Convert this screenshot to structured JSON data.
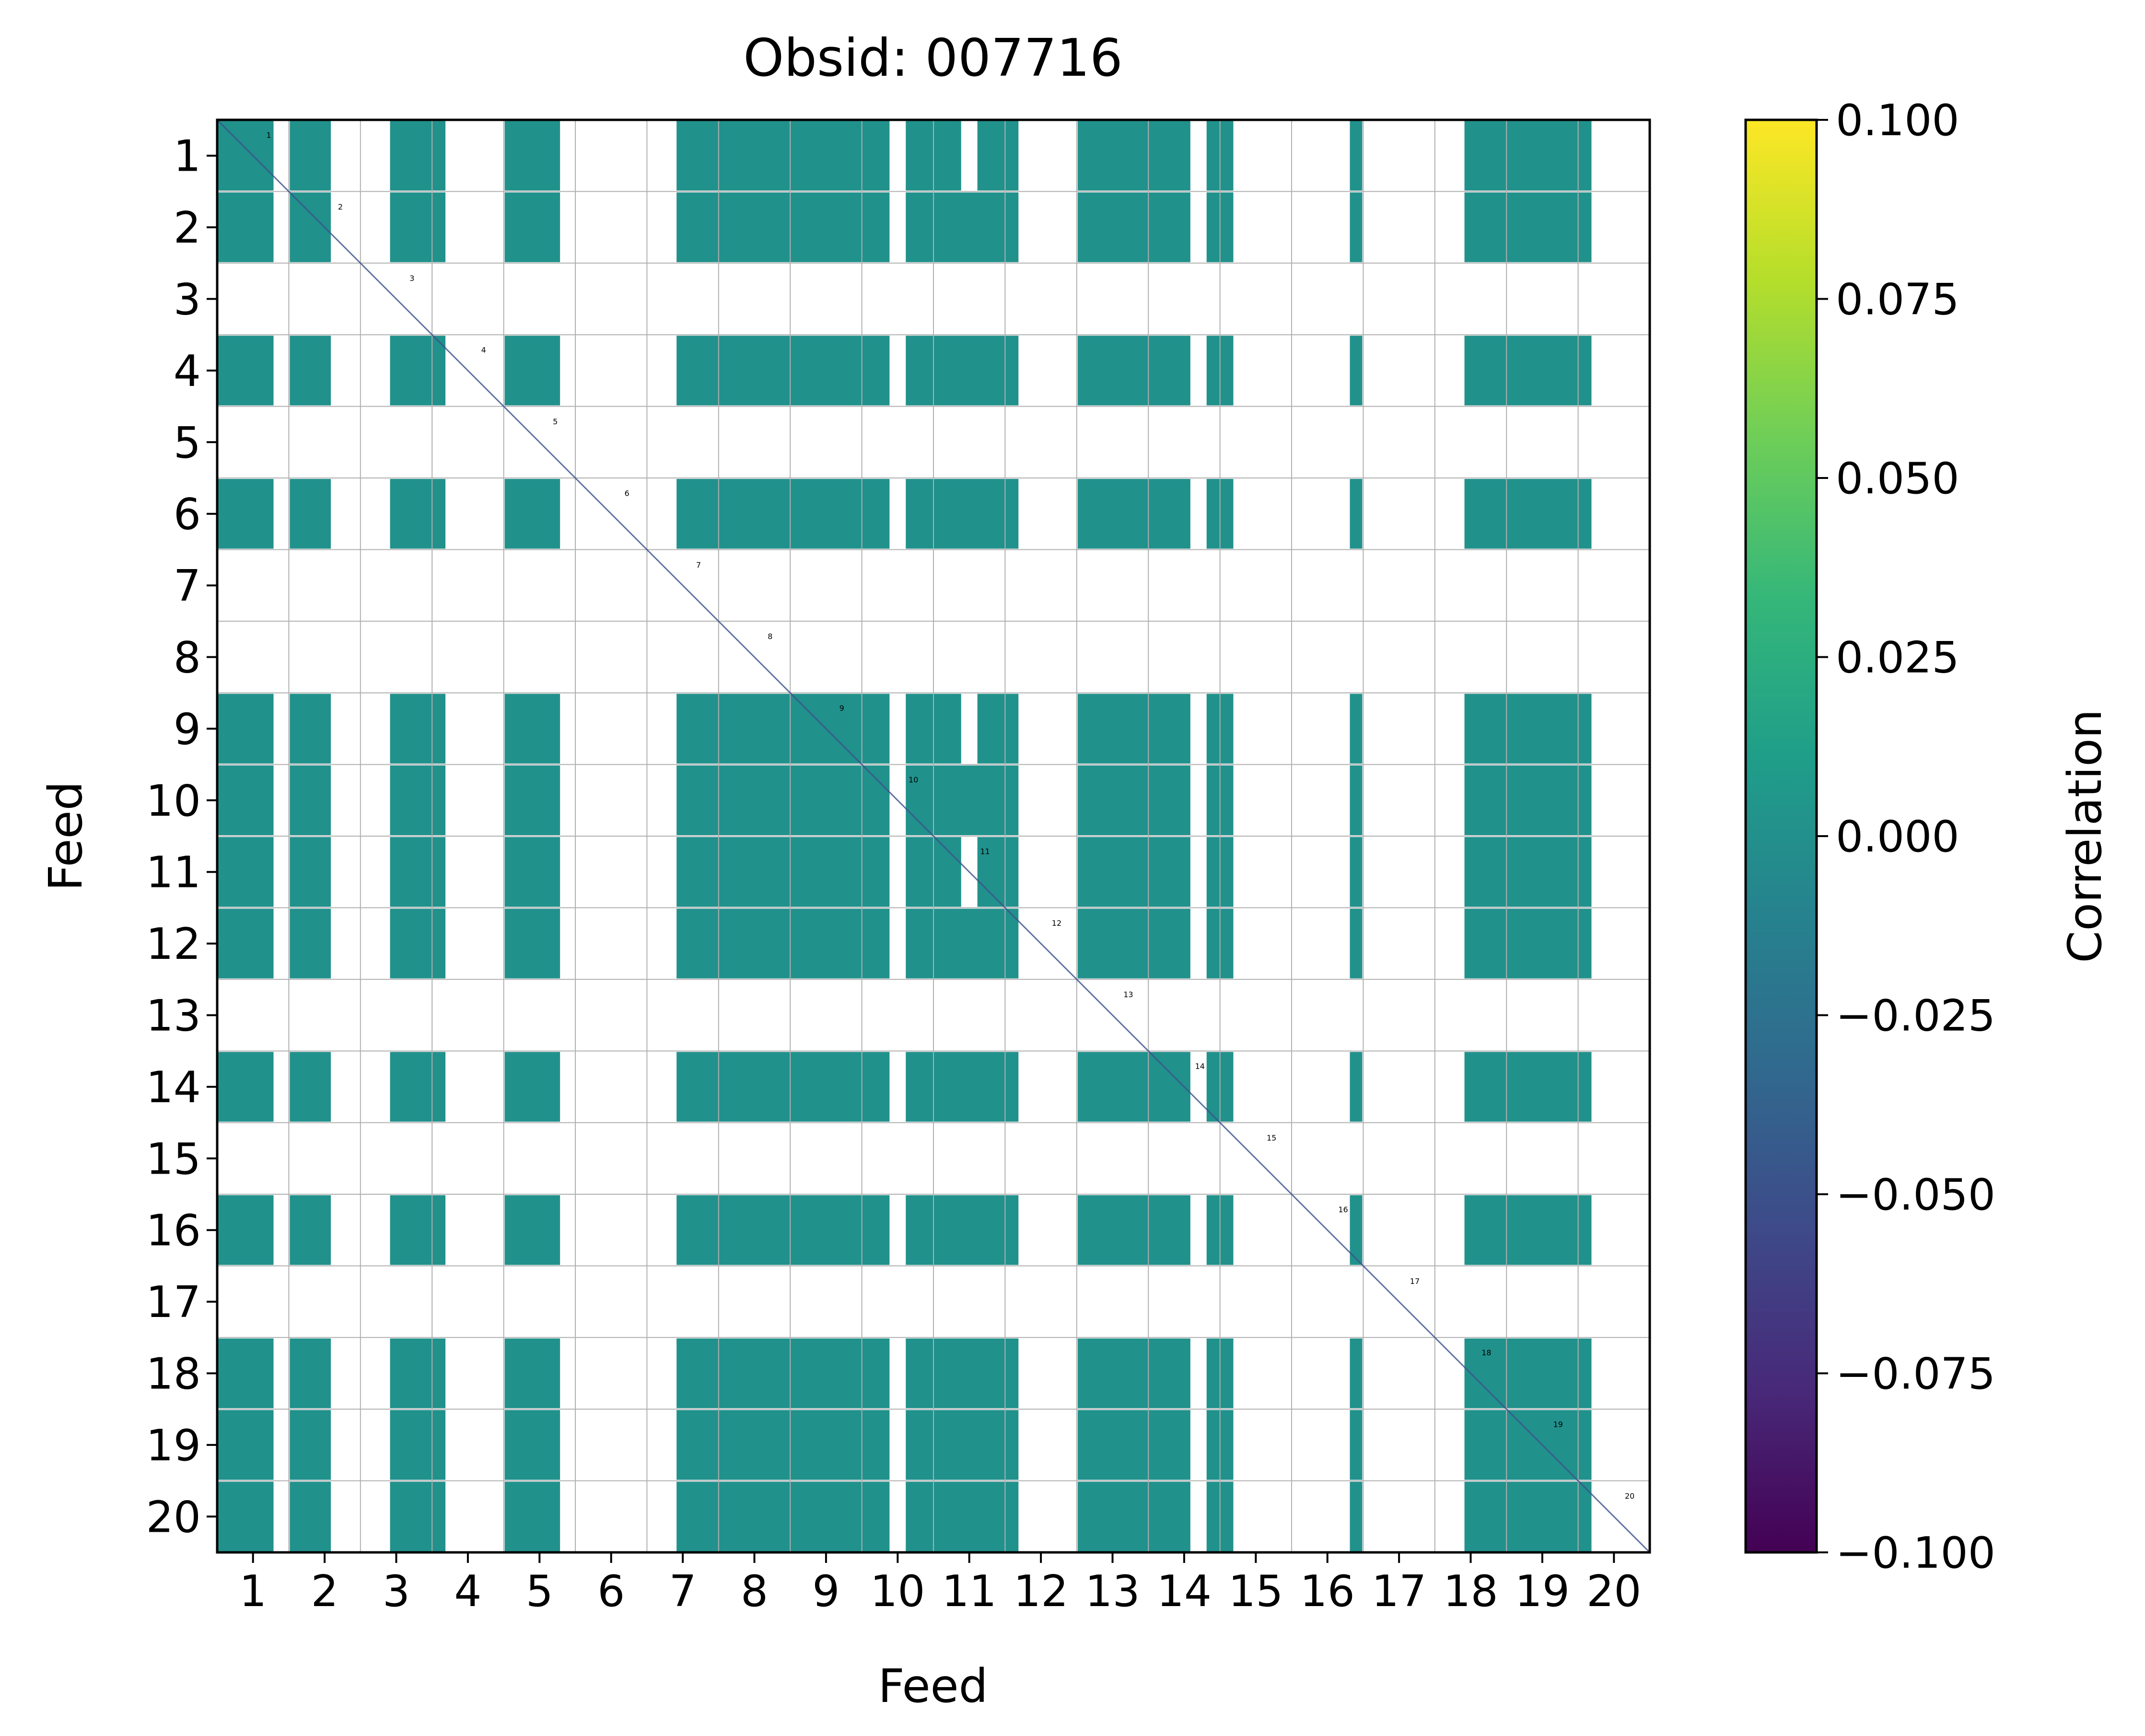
{
  "chart_data": {
    "type": "heatmap",
    "title": "Obsid: 007716",
    "xlabel": "Feed",
    "ylabel": "Feed",
    "feeds": [
      "1",
      "2",
      "3",
      "4",
      "5",
      "6",
      "7",
      "8",
      "9",
      "10",
      "11",
      "12",
      "13",
      "14",
      "15",
      "16",
      "17",
      "18",
      "19",
      "20"
    ],
    "diagonal_labels": [
      "1",
      "2",
      "3",
      "4",
      "5",
      "6",
      "7",
      "8",
      "9",
      "10",
      "11",
      "12",
      "13",
      "14",
      "15",
      "16",
      "17",
      "18",
      "19",
      "20"
    ],
    "blocks_per_feed": 4,
    "fill_value": 0.0,
    "diagonal_value": -0.05,
    "grid": true,
    "masked_rows": [
      "1111011100001111000011110000000011111111111111101111011100001111111101100000000100000001111111110000",
      "1111011100001111000011110000000011111111111111101111111100001111111101100000000100000001111111110000",
      "0000000000000000000000000000000000000000000000000000000000000000000000000000000000000000000000000000",
      "1111011100001111000011110000000011111111111111101111111100001111111101100000000100000001111111110000",
      "0000000000000000000000000000000000000000000000000000000000000000000000000000000000000000000000000000",
      "1111011100001111000011110000000011111111111111101111111100001111111101100000000100000001111111110000",
      "0000000000000000000000000000000000000000000000000000000000000000000000000000000000000000000000000000",
      "0000000000000000000000000000000000000000000000000000000000000000000000000000000000000000000000000000",
      "1111011100001111000011110000000011111111111111101111011100001111111101100000000100000001111111110000",
      "1111011100001111000011110000000011111111111111101111111100001111111101100000000100000001111111110000",
      "1111011100001111000011110000000011111111111111101111011100001111111101100000000100000001111111110000",
      "1111011100001111000011110000000011111111111111101111111100001111111101100000000100000001111111110000",
      "0000000000000000000000000000000000000000000000000000000000000000000000000000000000000000000000000000",
      "1111011100001111000011110000000011111111111111101111111100001111111101100000000100000001111111110000",
      "0000000000000000000000000000000000000000000000000000000000000000000000000000000000000000000000000000",
      "1111011100001111000011110000000011111111111111101111111100001111111101100000000100000001111111110000",
      "0000000000000000000000000000000000000000000000000000000000000000000000000000000000000000000000000000",
      "1111011100001111000011110000000011111111111111101111111100001111111101100000000100000001111111110000",
      "1111011100001111000011110000000011111111111111101111111100001111111101100000000100000001111111110000",
      "1111011100001111000011110000000011111111111111101111111100001111111101100000000100000001111111110000"
    ],
    "colorbar": {
      "label": "Correlation",
      "colormap": "viridis",
      "vmin": -0.1,
      "vmax": 0.1,
      "ticks": [
        "0.100",
        "0.075",
        "0.050",
        "0.025",
        "0.000",
        "−0.025",
        "−0.050",
        "−0.075",
        "−0.100"
      ],
      "tick_values": [
        0.1,
        0.075,
        0.05,
        0.025,
        0.0,
        -0.025,
        -0.05,
        -0.075,
        -0.1
      ]
    }
  },
  "colors": {
    "cell_fill": "#21918c",
    "diagonal_line": "#3b528b",
    "grid": "#b0b0b0",
    "background": "#ffffff",
    "viridis_stops": [
      "#440154",
      "#482878",
      "#3e4989",
      "#31688e",
      "#26828e",
      "#1f9e89",
      "#35b779",
      "#6ece58",
      "#b5de2b",
      "#fde725"
    ]
  }
}
